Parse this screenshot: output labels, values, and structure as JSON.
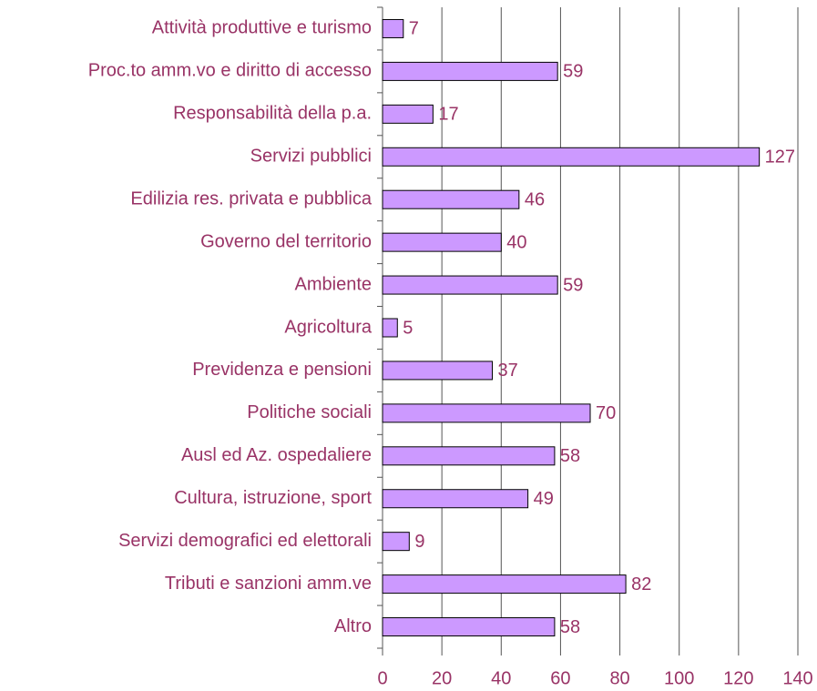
{
  "chart_data": {
    "type": "bar",
    "orientation": "horizontal",
    "categories": [
      "Attività produttive e turismo",
      "Proc.to amm.vo e diritto di accesso",
      "Responsabilità della p.a.",
      "Servizi pubblici",
      "Edilizia res. privata e pubblica",
      "Governo del territorio",
      "Ambiente",
      "Agricoltura",
      "Previdenza e pensioni",
      "Politiche sociali",
      "Ausl ed Az. ospedaliere",
      "Cultura, istruzione, sport",
      "Servizi demografici ed elettorali",
      "Tributi e sanzioni amm.ve",
      "Altro"
    ],
    "values": [
      7,
      59,
      17,
      127,
      46,
      40,
      59,
      5,
      37,
      70,
      58,
      49,
      9,
      82,
      58
    ],
    "color": "#cc99ff",
    "xlim": [
      0,
      140
    ],
    "xticks": [
      0,
      20,
      40,
      60,
      80,
      100,
      120,
      140
    ],
    "grid": true
  }
}
